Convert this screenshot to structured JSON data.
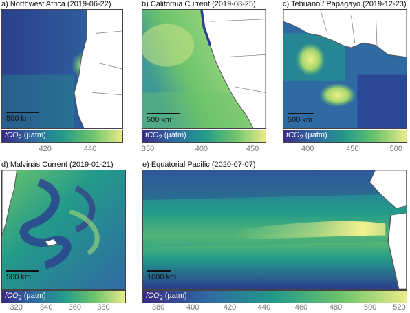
{
  "colorbar_label_prefix": "fCO",
  "colorbar_label_sub": "2",
  "colorbar_label_unit": " (µatm)",
  "colormap": [
    "#3a2a86",
    "#2f6aa3",
    "#239a8a",
    "#6cc36c",
    "#e9ec8a"
  ],
  "panels": [
    {
      "title": "a) Northwest Africa (2019-06-22)",
      "scale": "500 km",
      "ticks": [
        "420",
        "440"
      ]
    },
    {
      "title": "b) California Current (2019-08-25)",
      "scale": "500 km",
      "ticks": [
        "350",
        "400",
        "450"
      ]
    },
    {
      "title": "c) Tehuano / Papagayo (2019-12-23)",
      "scale": "500 km",
      "ticks": [
        "400",
        "450",
        "500"
      ]
    },
    {
      "title": "d) Malvinas Current (2019-01-21)",
      "scale": "500 km",
      "ticks": [
        "320",
        "340",
        "360",
        "380"
      ]
    },
    {
      "title": "e) Equatorial Pacific (2020-07-07)",
      "scale": "1000 km",
      "ticks": [
        "380",
        "400",
        "420",
        "440",
        "460",
        "480",
        "500",
        "520"
      ]
    }
  ]
}
